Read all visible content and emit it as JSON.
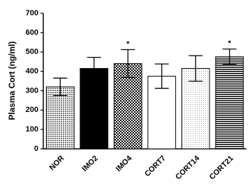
{
  "chart_data": {
    "type": "bar",
    "y_label": "Plasma Cort (ng/ml)",
    "categories": [
      "NOR",
      "IMO2",
      "IMO4",
      "CORT7",
      "CORT14",
      "CORT21"
    ],
    "values": [
      320,
      415,
      440,
      375,
      415,
      475
    ],
    "errors": [
      45,
      57,
      72,
      63,
      66,
      40
    ],
    "significance": [
      null,
      null,
      "*",
      null,
      null,
      "*"
    ],
    "patterns": [
      "dots",
      "solid",
      "checker",
      "none",
      "dots-light",
      "hlines"
    ],
    "color": "#000000",
    "ylim": [
      0,
      700
    ],
    "yticks": [
      0,
      100,
      200,
      300,
      400,
      500,
      600,
      700
    ]
  }
}
